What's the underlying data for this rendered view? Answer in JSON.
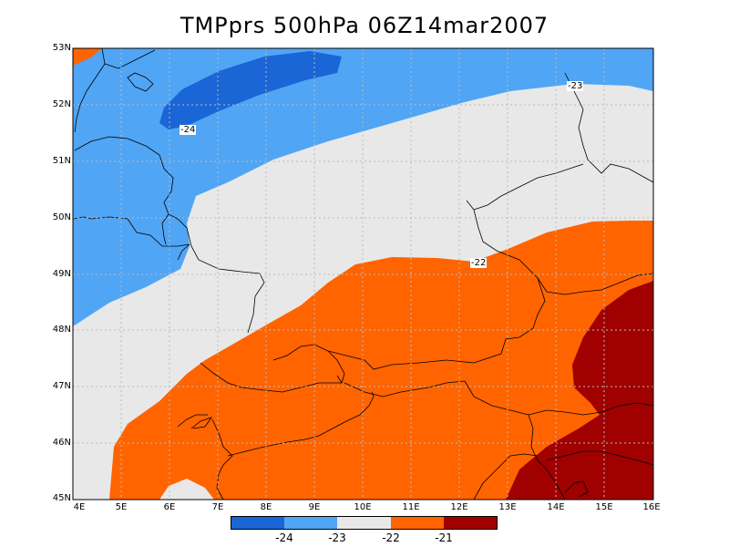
{
  "title": "TMPprs 500hPa 06Z14mar2007",
  "lat_labels": [
    "53N",
    "52N",
    "51N",
    "50N",
    "49N",
    "48N",
    "47N",
    "46N",
    "45N"
  ],
  "lon_labels": [
    "4E",
    "5E",
    "6E",
    "7E",
    "8E",
    "9E",
    "10E",
    "11E",
    "12E",
    "13E",
    "14E",
    "15E",
    "16E"
  ],
  "contour_labels": {
    "c23": "-23",
    "c24": "-24",
    "c22": "-22"
  },
  "colorbar": {
    "colors": [
      "#1a66d6",
      "#50a5f5",
      "#e8e8e8",
      "#ff6400",
      "#a00000"
    ],
    "ticks": [
      "-24",
      "-23",
      "-22",
      "-21"
    ]
  },
  "colors": {
    "below_24": "#1a66d6",
    "band_24_23": "#50a5f5",
    "band_23_22": "#e8e8e8",
    "band_22_21": "#ff6400",
    "above_21": "#a00000"
  }
}
